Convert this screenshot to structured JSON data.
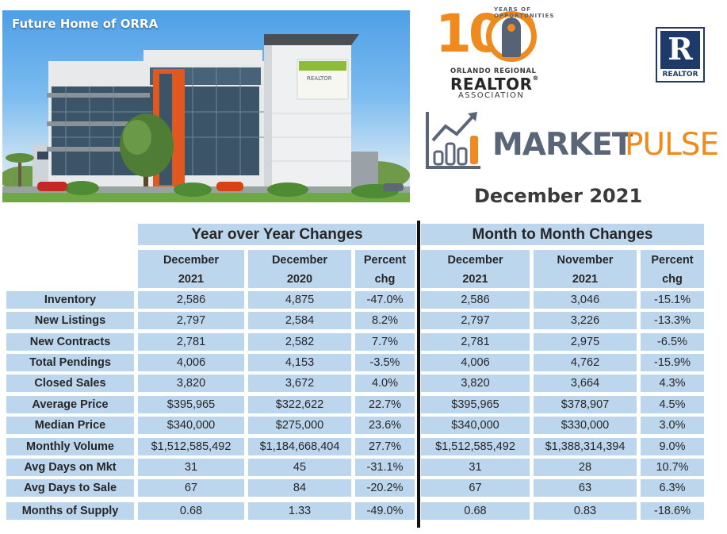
{
  "hero": {
    "caption": "Future Home of ORRA",
    "sign_text": "REALTOR"
  },
  "logo": {
    "hundred": "100",
    "years_text": "YEARS OF OPPORTUNITIES",
    "regional": "ORLANDO REGIONAL",
    "realtor": "REALTOR",
    "realtor_mark": "®",
    "association": "ASSOCIATION",
    "badge_letter": "R",
    "badge_text": "REALTOR"
  },
  "market_pulse": {
    "market": "MARKET",
    "pulse": "PULSE",
    "date": "December 2021"
  },
  "colors": {
    "orange": "#ef8a1e",
    "slate": "#5b6578",
    "band": "#bcd6ee",
    "navy": "#1d3a6a"
  },
  "table": {
    "group_headers": [
      "Year over Year Changes",
      "Month to Month Changes"
    ],
    "col_headers": [
      [
        "December",
        "2021"
      ],
      [
        "December",
        "2020"
      ],
      [
        "Percent",
        "chg"
      ],
      [
        "December",
        "2021"
      ],
      [
        "November",
        "2021"
      ],
      [
        "Percent",
        "chg"
      ]
    ],
    "rows": [
      {
        "label": "Inventory",
        "values": [
          "2,586",
          "4,875",
          "-47.0%",
          "2,586",
          "3,046",
          "-15.1%"
        ]
      },
      {
        "label": "New Listings",
        "values": [
          "2,797",
          "2,584",
          "8.2%",
          "2,797",
          "3,226",
          "-13.3%"
        ]
      },
      {
        "label": "New Contracts",
        "values": [
          "2,781",
          "2,582",
          "7.7%",
          "2,781",
          "2,975",
          "-6.5%"
        ]
      },
      {
        "label": "Total Pendings",
        "values": [
          "4,006",
          "4,153",
          "-3.5%",
          "4,006",
          "4,762",
          "-15.9%"
        ]
      },
      {
        "label": "Closed Sales",
        "values": [
          "3,820",
          "3,672",
          "4.0%",
          "3,820",
          "3,664",
          "4.3%"
        ]
      },
      {
        "label": "Average Price",
        "values": [
          "$395,965",
          "$322,622",
          "22.7%",
          "$395,965",
          "$378,907",
          "4.5%"
        ]
      },
      {
        "label": "Median Price",
        "values": [
          "$340,000",
          "$275,000",
          "23.6%",
          "$340,000",
          "$330,000",
          "3.0%"
        ]
      },
      {
        "label": "Monthly Volume",
        "values": [
          "$1,512,585,492",
          "$1,184,668,404",
          "27.7%",
          "$1,512,585,492",
          "$1,388,314,394",
          "9.0%"
        ]
      },
      {
        "label": "Avg Days on Mkt",
        "values": [
          "31",
          "45",
          "-31.1%",
          "31",
          "28",
          "10.7%"
        ]
      },
      {
        "label": "Avg Days to Sale",
        "values": [
          "67",
          "84",
          "-20.2%",
          "67",
          "63",
          "6.3%"
        ]
      },
      {
        "label": "Months of Supply",
        "values": [
          "0.68",
          "1.33",
          "-49.0%",
          "0.68",
          "0.83",
          "-18.6%"
        ]
      }
    ]
  }
}
